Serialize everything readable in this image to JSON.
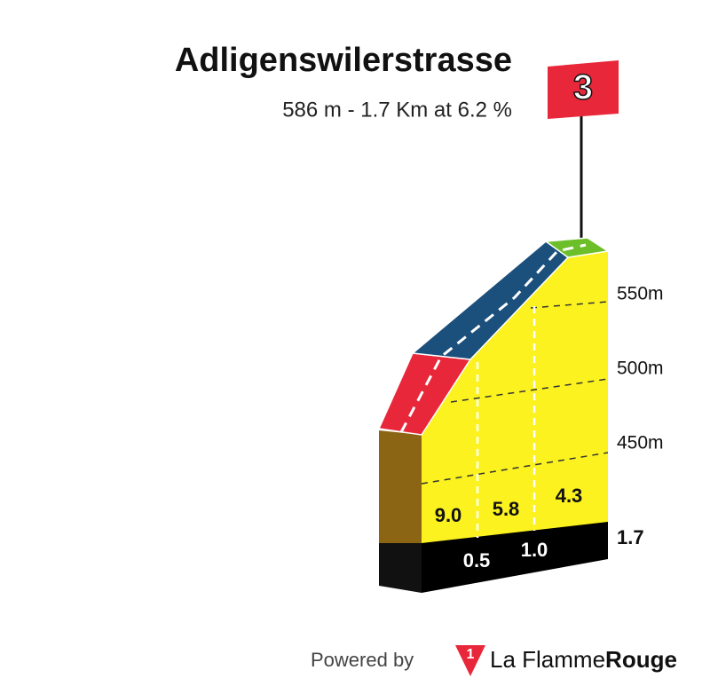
{
  "header": {
    "title": "Adligenswilerstrasse",
    "subtitle": "586 m - 1.7 Km at 6.2 %"
  },
  "category_badge": "3",
  "altitude_labels": [
    "550m",
    "500m",
    "450m"
  ],
  "gradient_labels": [
    "9.0",
    "5.8",
    "4.3"
  ],
  "distance_labels": [
    "0.5",
    "1.0",
    "1.7"
  ],
  "footer": {
    "powered_by": "Powered by",
    "brand_light": "La Flamme",
    "brand_bold": "Rouge"
  }
}
